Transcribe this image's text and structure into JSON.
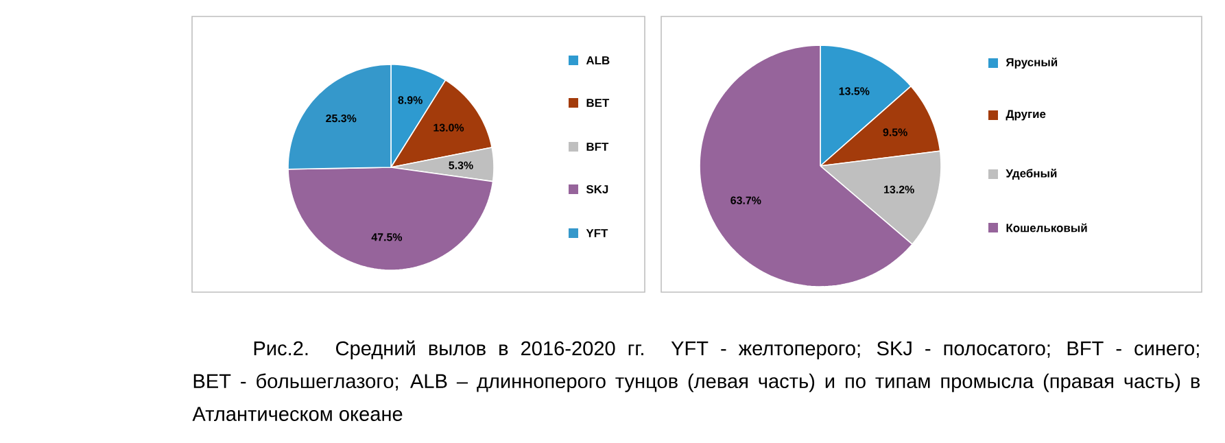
{
  "chart_data": [
    {
      "type": "pie",
      "categories": [
        "ALB",
        "BET",
        "BFT",
        "SKJ",
        "YFT"
      ],
      "values": [
        8.9,
        13.0,
        5.3,
        47.5,
        25.3
      ],
      "colors": [
        "#2e9ad0",
        "#a33b0b",
        "#bfbfbf",
        "#96649b",
        "#3598cb"
      ],
      "value_labels": [
        "8.9%",
        "13.0%",
        "5.3%",
        "47.5%",
        "25.3%"
      ],
      "legend": "right",
      "annotations": [
        "Рис.2. Средний вылов в 2016-2020 гг. YFT - желтоперого; SKJ - полосатого; BFT - синего; BET - большеглазого; ALB – длинноперого тунцов (левая часть) и по типам промысла (правая часть) в Атлантическом океане"
      ]
    },
    {
      "type": "pie",
      "categories": [
        "Ярусный",
        "Другие",
        "Удебный",
        "Кошельковый"
      ],
      "values": [
        13.5,
        9.5,
        13.2,
        63.7
      ],
      "colors": [
        "#2e9ad0",
        "#a33b0b",
        "#bfbfbf",
        "#96649b"
      ],
      "value_labels": [
        "13.5%",
        "9.5%",
        "13.2%",
        "63.7%"
      ],
      "legend": "right"
    }
  ]
}
